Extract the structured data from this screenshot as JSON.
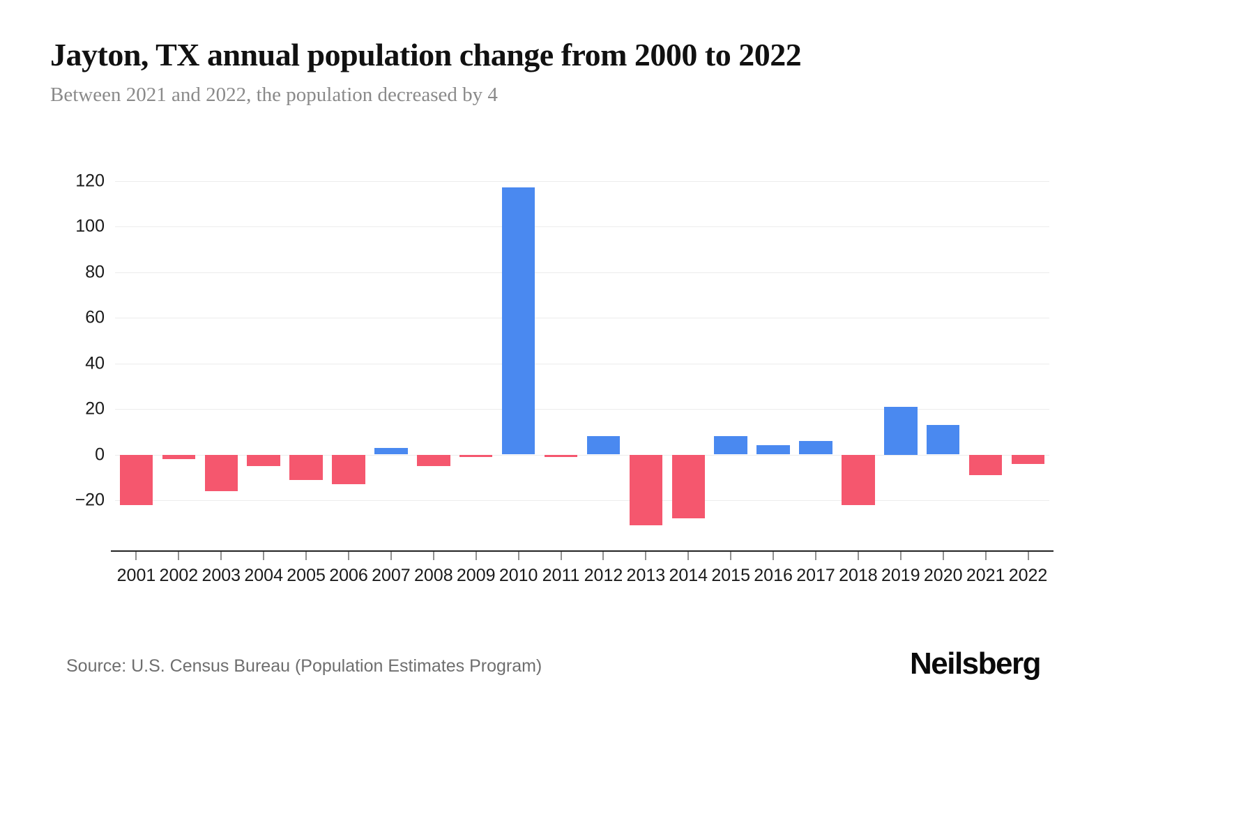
{
  "header": {
    "title": "Jayton, TX annual population change from 2000 to 2022",
    "subtitle": "Between 2021 and 2022, the population decreased by 4"
  },
  "chart_data": {
    "type": "bar",
    "title": "Jayton, TX annual population change from 2000 to 2022",
    "xlabel": "",
    "ylabel": "",
    "categories": [
      "2001",
      "2002",
      "2003",
      "2004",
      "2005",
      "2006",
      "2007",
      "2008",
      "2009",
      "2010",
      "2011",
      "2012",
      "2013",
      "2014",
      "2015",
      "2016",
      "2017",
      "2018",
      "2019",
      "2020",
      "2021",
      "2022"
    ],
    "values": [
      -22,
      -2,
      -16,
      -5,
      -11,
      -13,
      3,
      -5,
      -1,
      117,
      -1,
      8,
      -31,
      -28,
      8,
      4,
      6,
      -22,
      21,
      13,
      -9,
      -4
    ],
    "ylim": [
      -42,
      126
    ],
    "yticks": [
      120,
      100,
      80,
      60,
      40,
      20,
      0,
      -20
    ],
    "grid": true,
    "legend": "none",
    "positive_color": "#4a89f0",
    "negative_color": "#f5576e"
  },
  "footer": {
    "source": "Source: U.S. Census Bureau (Population Estimates Program)",
    "logo": "Neilsberg"
  }
}
